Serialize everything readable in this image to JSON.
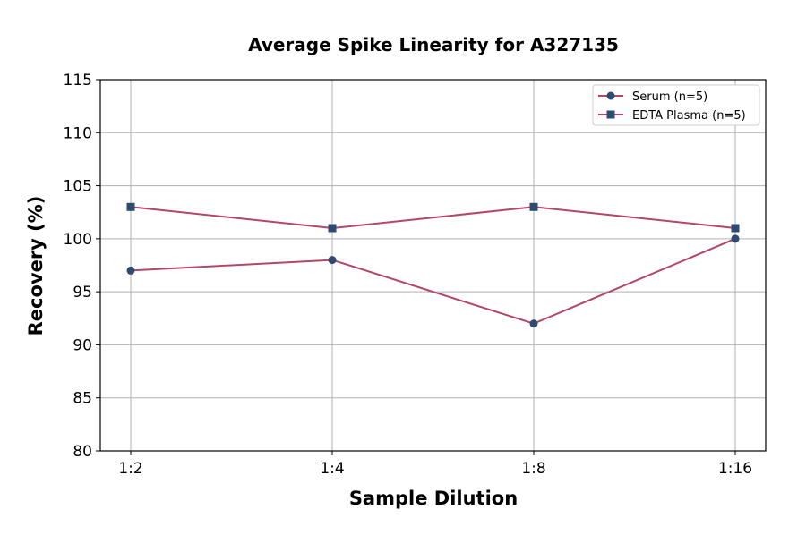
{
  "chart_data": {
    "type": "line",
    "title": "Average Spike Linearity for A327135",
    "xlabel": "Sample Dilution",
    "ylabel": "Recovery (%)",
    "categories": [
      "1:2",
      "1:4",
      "1:8",
      "1:16"
    ],
    "ylim": [
      80,
      115
    ],
    "yticks": [
      80,
      85,
      90,
      95,
      100,
      105,
      110,
      115
    ],
    "grid": true,
    "legend_position": "top-right",
    "series": [
      {
        "name": "Serum (n=5)",
        "values": [
          97,
          98,
          92,
          100
        ],
        "marker": "circle",
        "line_color": "#b5466b",
        "marker_color": "#2e4a70"
      },
      {
        "name": "EDTA Plasma (n=5)",
        "values": [
          103,
          101,
          103,
          101
        ],
        "marker": "square",
        "line_color": "#b5466b",
        "marker_color": "#2e4a70"
      }
    ]
  }
}
